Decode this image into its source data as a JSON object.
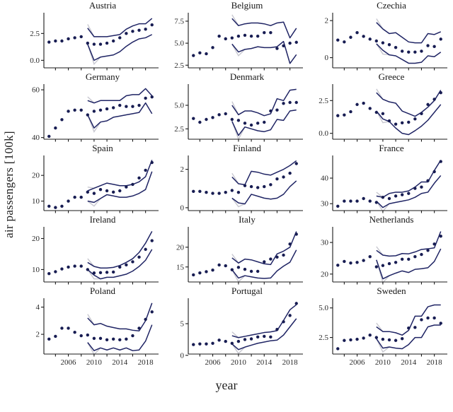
{
  "chart_data": {
    "type": "line",
    "title": "",
    "xlabel": "year",
    "ylabel": "air passengers [100k]",
    "x_years": [
      2003,
      2004,
      2005,
      2006,
      2007,
      2008,
      2009,
      2010,
      2011,
      2012,
      2013,
      2014,
      2015,
      2016,
      2017,
      2018,
      2019
    ],
    "band_years": [
      2009,
      2010,
      2011,
      2012,
      2013,
      2014,
      2015,
      2016,
      2017,
      2018,
      2019
    ],
    "xticks": [
      2004,
      2006,
      2008,
      2010,
      2012,
      2014,
      2016,
      2018
    ],
    "xtick_labeled": [
      2006,
      2010,
      2014,
      2018
    ],
    "xtick_labels": [
      "2006",
      "2010",
      "2014",
      "2018"
    ],
    "legend": "none",
    "grid": "off",
    "colors": {
      "line": "#1f2464",
      "dot": "#171c52",
      "gray": "#c8c8d0",
      "spine": "#1a1a1a",
      "tick_text": "#2a2a2a"
    },
    "panels": [
      {
        "title": "Austria",
        "ylim": [
          -0.7,
          4.3
        ],
        "ytick_vals": [
          0.0,
          2.5
        ],
        "ytick_labels": [
          "0.0",
          "2.5"
        ],
        "dots": [
          1.7,
          1.8,
          1.8,
          2.0,
          2.1,
          2.2,
          1.6,
          1.5,
          1.5,
          1.6,
          1.8,
          2.1,
          2.5,
          2.7,
          2.8,
          2.9,
          3.3
        ],
        "upper": [
          3.0,
          2.2,
          2.2,
          2.2,
          2.3,
          2.4,
          2.9,
          3.2,
          3.4,
          3.4,
          3.9
        ],
        "lower": [
          1.5,
          0.0,
          0.3,
          0.4,
          0.5,
          0.8,
          1.3,
          1.7,
          2.0,
          2.1,
          2.4
        ]
      },
      {
        "title": "Belgium",
        "ylim": [
          2.2,
          8.3
        ],
        "ytick_vals": [
          2.5,
          5.0,
          7.5
        ],
        "ytick_labels": [
          "2.5",
          "5.0",
          "7.5"
        ],
        "dots": [
          3.6,
          3.9,
          3.8,
          4.5,
          5.8,
          5.5,
          5.6,
          5.8,
          5.9,
          5.8,
          5.8,
          6.2,
          6.2,
          4.4,
          4.7,
          5.0,
          5.1
        ],
        "upper": [
          7.8,
          7.0,
          7.2,
          7.3,
          7.3,
          7.2,
          7.0,
          7.3,
          7.4,
          5.6,
          6.7
        ],
        "lower": [
          4.9,
          4.0,
          4.3,
          4.4,
          4.6,
          4.5,
          4.5,
          4.6,
          5.2,
          2.7,
          3.7
        ]
      },
      {
        "title": "Czechia",
        "ylim": [
          -0.55,
          2.35
        ],
        "ytick_vals": [
          0,
          2
        ],
        "ytick_labels": [
          "0",
          "2"
        ],
        "dots": [
          0.95,
          0.85,
          1.1,
          1.35,
          1.15,
          1.0,
          0.9,
          0.8,
          0.7,
          0.55,
          0.35,
          0.3,
          0.3,
          0.35,
          0.65,
          0.6,
          1.0
        ],
        "upper": [
          1.9,
          1.55,
          1.3,
          1.35,
          1.1,
          0.85,
          0.8,
          0.8,
          1.3,
          1.25,
          1.4
        ],
        "lower": [
          0.75,
          0.4,
          0.15,
          0.1,
          -0.1,
          -0.3,
          -0.3,
          -0.25,
          0.1,
          0.05,
          0.3
        ]
      },
      {
        "title": "Germany",
        "ylim": [
          39.3,
          61.8
        ],
        "ytick_vals": [
          40,
          60
        ],
        "ytick_labels": [
          "40",
          "60"
        ],
        "dots": [
          40.5,
          44,
          47.5,
          51,
          51.5,
          51.5,
          49.5,
          51,
          51.5,
          52,
          52.5,
          53.5,
          53,
          53,
          53.5,
          56.5,
          57
        ],
        "upper": [
          55.5,
          54.5,
          55.5,
          55.5,
          55.5,
          55.5,
          57.5,
          58,
          58,
          60.5,
          57.5
        ],
        "lower": [
          49.5,
          44,
          46.5,
          47,
          48.5,
          49,
          49.5,
          50,
          50.5,
          54.5,
          50
        ]
      },
      {
        "title": "Denmark",
        "ylim": [
          1.4,
          7.1
        ],
        "ytick_vals": [
          2.5,
          5.0
        ],
        "ytick_labels": [
          "2.5",
          "5.0"
        ],
        "dots": [
          3.6,
          3.2,
          3.5,
          3.7,
          4.0,
          4.1,
          3.5,
          3.4,
          3.1,
          2.9,
          3.1,
          3.2,
          4.4,
          4.5,
          5.2,
          5.3,
          5.3
        ],
        "upper": [
          5.0,
          4.0,
          4.4,
          4.4,
          4.2,
          3.9,
          4.1,
          5.7,
          5.5,
          6.6,
          6.7
        ],
        "lower": [
          3.3,
          1.8,
          2.7,
          2.5,
          2.3,
          2.2,
          2.4,
          3.5,
          3.4,
          4.4,
          4.5
        ]
      },
      {
        "title": "Greece",
        "ylim": [
          -0.45,
          3.65
        ],
        "ytick_vals": [
          0.0,
          2.5
        ],
        "ytick_labels": [
          "0.0",
          "2.5"
        ],
        "dots": [
          1.35,
          1.4,
          1.65,
          2.2,
          2.3,
          1.9,
          1.6,
          1.5,
          0.95,
          0.7,
          0.8,
          0.85,
          1.1,
          1.5,
          2.2,
          2.6,
          3.1
        ],
        "upper": [
          3.1,
          2.6,
          2.4,
          2.3,
          1.7,
          1.5,
          1.3,
          1.6,
          2.0,
          2.5,
          3.3
        ],
        "lower": [
          1.7,
          1.1,
          0.9,
          0.4,
          0.0,
          -0.1,
          0.2,
          0.55,
          1.0,
          1.6,
          2.2
        ]
      },
      {
        "title": "Spain",
        "ylim": [
          6.3,
          27.2
        ],
        "ytick_vals": [
          10,
          20
        ],
        "ytick_labels": [
          "10",
          "20"
        ],
        "dots": [
          8,
          7.5,
          8,
          10,
          11.5,
          11.5,
          13.5,
          13,
          14.5,
          14,
          13.5,
          14,
          15.5,
          16.5,
          19,
          22,
          25
        ],
        "upper": [
          14,
          15,
          16,
          17,
          16.5,
          16,
          16,
          16.5,
          17.5,
          19.5,
          26
        ],
        "lower": [
          10,
          9.5,
          11,
          12.5,
          12,
          11.5,
          11.5,
          12,
          13,
          14.5,
          21.5
        ]
      },
      {
        "title": "Finland",
        "ylim": [
          -0.15,
          2.65
        ],
        "ytick_vals": [
          0,
          2
        ],
        "ytick_labels": [
          "0",
          "2"
        ],
        "dots": [
          0.85,
          0.85,
          0.8,
          0.75,
          0.75,
          0.8,
          0.9,
          0.8,
          1.15,
          1.1,
          1.05,
          1.1,
          1.2,
          1.5,
          1.6,
          1.8,
          2.3
        ],
        "upper": [
          1.6,
          1.25,
          1.2,
          1.9,
          1.85,
          1.75,
          1.7,
          1.85,
          2.0,
          2.2,
          2.45
        ],
        "lower": [
          0.5,
          0.25,
          0.2,
          0.7,
          0.6,
          0.5,
          0.45,
          0.5,
          0.7,
          1.1,
          1.4
        ]
      },
      {
        "title": "France",
        "ylim": [
          27.3,
          48.3
        ],
        "ytick_vals": [
          30,
          40
        ],
        "ytick_labels": [
          "30",
          "40"
        ],
        "dots": [
          29,
          31,
          31,
          31,
          32,
          31,
          30.5,
          32.5,
          32,
          33,
          33.5,
          34,
          36,
          36.5,
          39,
          42.5,
          46.5
        ],
        "upper": [
          33,
          32.5,
          34,
          34.5,
          34.5,
          35,
          36.5,
          38.5,
          38.5,
          43,
          47
        ],
        "lower": [
          31,
          28.5,
          30,
          30.5,
          31,
          31.5,
          32.5,
          34,
          34.5,
          38,
          41
        ]
      },
      {
        "title": "Ireland",
        "ylim": [
          6.0,
          23.3
        ],
        "ytick_vals": [
          10,
          20
        ],
        "ytick_labels": [
          "10",
          "20"
        ],
        "dots": [
          8.7,
          9.3,
          10.2,
          10.8,
          11.1,
          11.1,
          10,
          8.9,
          9,
          9.1,
          9.2,
          10.8,
          11.5,
          12.5,
          14,
          16.5,
          19.3
        ],
        "upper": [
          12.3,
          11,
          10.5,
          10.5,
          10.7,
          11.3,
          12.3,
          13.5,
          15.5,
          18.5,
          22.3
        ],
        "lower": [
          10,
          8.2,
          7,
          7.5,
          7.5,
          8,
          8.5,
          9.5,
          11,
          13,
          16.5
        ]
      },
      {
        "title": "Italy",
        "ylim": [
          11.2,
          24.8
        ],
        "ytick_vals": [
          15,
          20
        ],
        "ytick_labels": [
          "15",
          "20"
        ],
        "dots": [
          13,
          13.5,
          13.8,
          14.2,
          15.5,
          15.3,
          14.3,
          14.9,
          14.4,
          13.9,
          13.9,
          16.3,
          17.0,
          17.5,
          18.0,
          20.8,
          23.3
        ],
        "upper": [
          17.3,
          16.0,
          17.0,
          16.8,
          16.3,
          15.8,
          15.6,
          18.3,
          19.0,
          20.0,
          24.0
        ],
        "lower": [
          14.3,
          12.2,
          12.8,
          12.5,
          12.2,
          12.1,
          12.2,
          14.0,
          15.2,
          16.2,
          19.3
        ]
      },
      {
        "title": "Netherlands",
        "ylim": [
          17.5,
          34.5
        ],
        "ytick_vals": [
          20,
          30
        ],
        "ytick_labels": [
          "20",
          "30"
        ],
        "dots": [
          22.8,
          24.0,
          23.5,
          23.7,
          24.3,
          25.5,
          22.3,
          22.7,
          23.3,
          23.7,
          24.7,
          24.7,
          25.5,
          26.2,
          27.5,
          29.5,
          32
        ],
        "upper": [
          27.5,
          26,
          25.7,
          25.8,
          26.5,
          26.4,
          27,
          27.8,
          28,
          28.3,
          33.5
        ],
        "lower": [
          24.5,
          18.5,
          19.5,
          20.3,
          21,
          20.5,
          21.5,
          21.7,
          22,
          24,
          28
        ]
      },
      {
        "title": "Poland",
        "ylim": [
          0.55,
          4.55
        ],
        "ytick_vals": [
          2,
          4
        ],
        "ytick_labels": [
          "2",
          "4"
        ],
        "dots": [
          1.65,
          1.85,
          2.45,
          2.45,
          2.15,
          1.9,
          1.95,
          1.7,
          1.7,
          1.6,
          1.65,
          1.6,
          1.65,
          1.9,
          2.45,
          3.1,
          3.65
        ],
        "upper": [
          3.2,
          2.7,
          2.8,
          2.6,
          2.5,
          2.4,
          2.4,
          2.3,
          2.25,
          3.0,
          4.3
        ],
        "lower": [
          1.4,
          0.8,
          1.0,
          0.85,
          1.0,
          0.85,
          1.0,
          0.8,
          0.85,
          1.5,
          2.7
        ]
      },
      {
        "title": "Portugal",
        "ylim": [
          0.2,
          8.8
        ],
        "ytick_vals": [
          0,
          5
        ],
        "ytick_labels": [
          "0",
          "5"
        ],
        "dots": [
          1.7,
          1.8,
          1.8,
          1.9,
          2.4,
          2.2,
          1.9,
          2.2,
          2.5,
          2.6,
          2.9,
          3.0,
          2.9,
          4.1,
          5.3,
          6.3,
          8.2
        ],
        "upper": [
          3.1,
          2.8,
          3.0,
          3.2,
          3.4,
          3.6,
          3.7,
          3.9,
          5.5,
          7.2,
          8.0
        ],
        "lower": [
          1.8,
          0.9,
          1.3,
          1.6,
          1.9,
          2.1,
          2.3,
          2.4,
          3.2,
          4.5,
          5.8
        ]
      },
      {
        "title": "Sweden",
        "ylim": [
          1.1,
          5.7
        ],
        "ytick_vals": [
          2.5,
          5.0
        ],
        "ytick_labels": [
          "2.5",
          "5.0"
        ],
        "dots": [
          1.55,
          2.25,
          2.3,
          2.35,
          2.45,
          2.7,
          2.5,
          2.35,
          2.3,
          2.25,
          2.4,
          3.3,
          3.35,
          4.0,
          4.15,
          4.15,
          3.7
        ],
        "upper": [
          3.4,
          3.0,
          3.0,
          2.9,
          2.7,
          3.1,
          4.3,
          4.3,
          5.1,
          5.25,
          5.25
        ],
        "lower": [
          2.4,
          1.6,
          1.7,
          1.6,
          1.55,
          1.9,
          2.5,
          2.5,
          3.4,
          3.55,
          3.55
        ]
      }
    ]
  }
}
